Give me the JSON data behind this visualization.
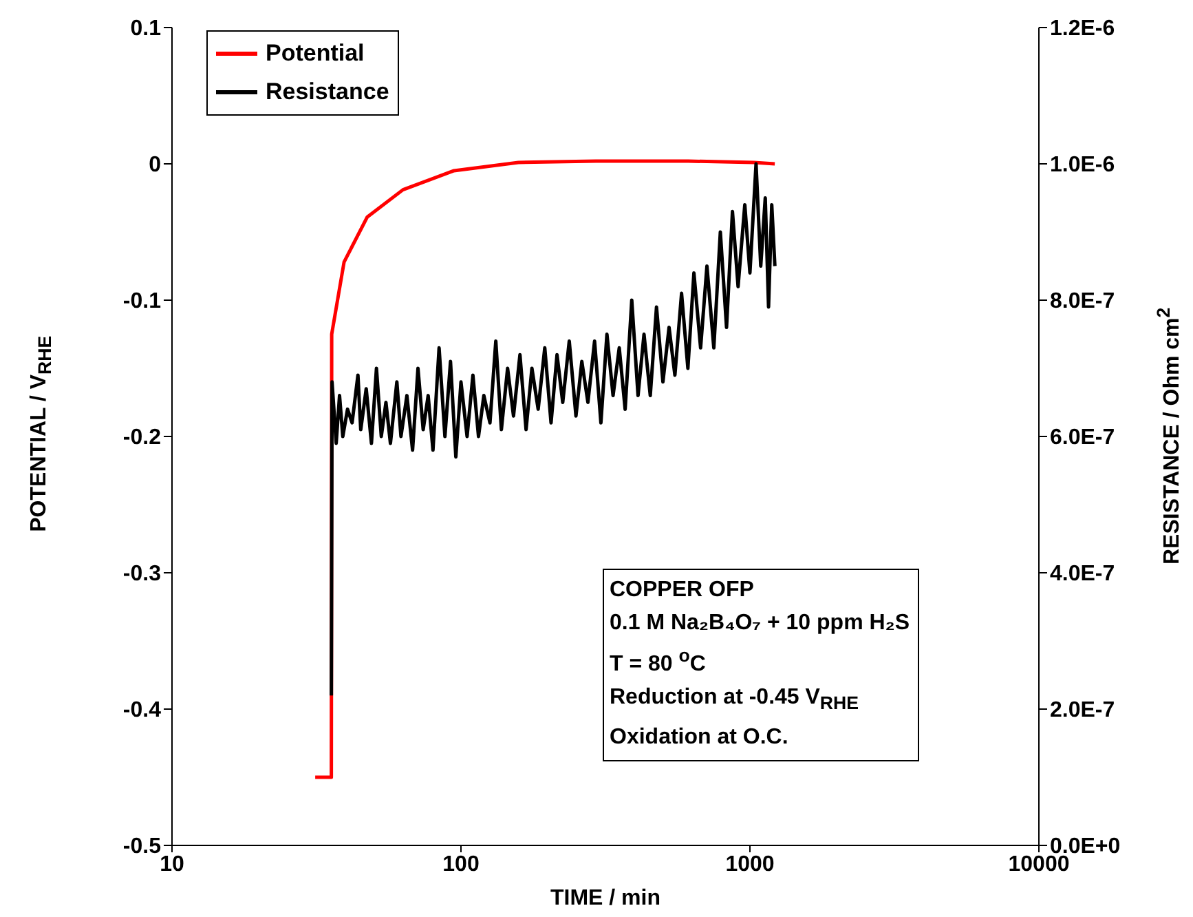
{
  "chart_data": {
    "type": "line",
    "xlabel": "TIME / min",
    "ylabel": "POTENTIAL / V$_{RHE}$",
    "y2label": "RESISTANCE / Ohm cm$^{2}$",
    "log": "x",
    "xlim": [
      10,
      10000
    ],
    "xticks": [
      10,
      100,
      1000,
      10000
    ],
    "ylim": [
      -0.5,
      0.1
    ],
    "yticks": [
      -0.5,
      -0.4,
      -0.3,
      -0.2,
      -0.1,
      0,
      0.1
    ],
    "y2lim": [
      0,
      1.2e-06
    ],
    "y2ticks": [
      {
        "value": 0,
        "label": "0.0E+0"
      },
      {
        "value": 2e-07,
        "label": "2.0E-7"
      },
      {
        "value": 4e-07,
        "label": "4.0E-7"
      },
      {
        "value": 6e-07,
        "label": "6.0E-7"
      },
      {
        "value": 8e-07,
        "label": "8.0E-7"
      },
      {
        "value": 1e-06,
        "label": "1.0E-6"
      },
      {
        "value": 1.2e-06,
        "label": "1.2E-6"
      }
    ],
    "grid": false,
    "legend": "top left",
    "marker": "none",
    "line_style": "solid",
    "series": [
      {
        "name": "Potential",
        "color": "#ff0000",
        "x": [
          31.3,
          35.6,
          35.7,
          39.4,
          47.4,
          63,
          94.6,
          158,
          293,
          611,
          1033,
          1219
        ],
        "values": [
          -0.45,
          -0.45,
          -0.125,
          -0.072,
          -0.039,
          -0.019,
          -0.005,
          0.001,
          0.002,
          0.002,
          0.001,
          0.0
        ]
      },
      {
        "name": "Resistance",
        "color": "#000000",
        "axis": "y2",
        "x": [
          35.6,
          35.8,
          37,
          38,
          39,
          40.5,
          42,
          44,
          45,
          47,
          49,
          51,
          53,
          55,
          57,
          60,
          62,
          65,
          68,
          71,
          74,
          77,
          80,
          84,
          88,
          92,
          96,
          100,
          105,
          110,
          115,
          120,
          126,
          132,
          138,
          145,
          152,
          160,
          168,
          176,
          185,
          195,
          205,
          215,
          225,
          237,
          250,
          262,
          275,
          290,
          305,
          320,
          336,
          353,
          370,
          390,
          410,
          430,
          452,
          475,
          500,
          525,
          550,
          580,
          610,
          640,
          675,
          710,
          750,
          790,
          830,
          870,
          910,
          960,
          1000,
          1050,
          1090,
          1130,
          1160,
          1190,
          1220
        ],
        "values": [
          2.2e-07,
          6.8e-07,
          5.9e-07,
          6.6e-07,
          6e-07,
          6.4e-07,
          6.2e-07,
          6.9e-07,
          6.1e-07,
          6.7e-07,
          5.9e-07,
          7e-07,
          6e-07,
          6.5e-07,
          5.9e-07,
          6.8e-07,
          6e-07,
          6.6e-07,
          5.8e-07,
          7e-07,
          6.1e-07,
          6.6e-07,
          5.8e-07,
          7.3e-07,
          6e-07,
          7.1e-07,
          5.7e-07,
          6.8e-07,
          6e-07,
          6.9e-07,
          6e-07,
          6.6e-07,
          6.2e-07,
          7.4e-07,
          6.1e-07,
          7e-07,
          6.3e-07,
          7.2e-07,
          6.1e-07,
          7e-07,
          6.4e-07,
          7.3e-07,
          6.2e-07,
          7.2e-07,
          6.5e-07,
          7.4e-07,
          6.3e-07,
          7.1e-07,
          6.5e-07,
          7.4e-07,
          6.2e-07,
          7.5e-07,
          6.6e-07,
          7.3e-07,
          6.4e-07,
          8e-07,
          6.6e-07,
          7.5e-07,
          6.6e-07,
          7.9e-07,
          6.8e-07,
          7.6e-07,
          6.9e-07,
          8.1e-07,
          7e-07,
          8.4e-07,
          7.3e-07,
          8.5e-07,
          7.3e-07,
          9e-07,
          7.6e-07,
          9.3e-07,
          8.2e-07,
          9.4e-07,
          8.4e-07,
          1e-06,
          8.5e-07,
          9.5e-07,
          7.9e-07,
          9.4e-07,
          8.5e-07
        ]
      }
    ],
    "annotations": [
      "COPPER OFP",
      "0.1 M Na₂B₄O₇ + 10 ppm H₂S",
      "T = 80 $^{o}$C",
      "Reduction at -0.45 V$_{RHE}$",
      "Oxidation at O.C."
    ]
  }
}
